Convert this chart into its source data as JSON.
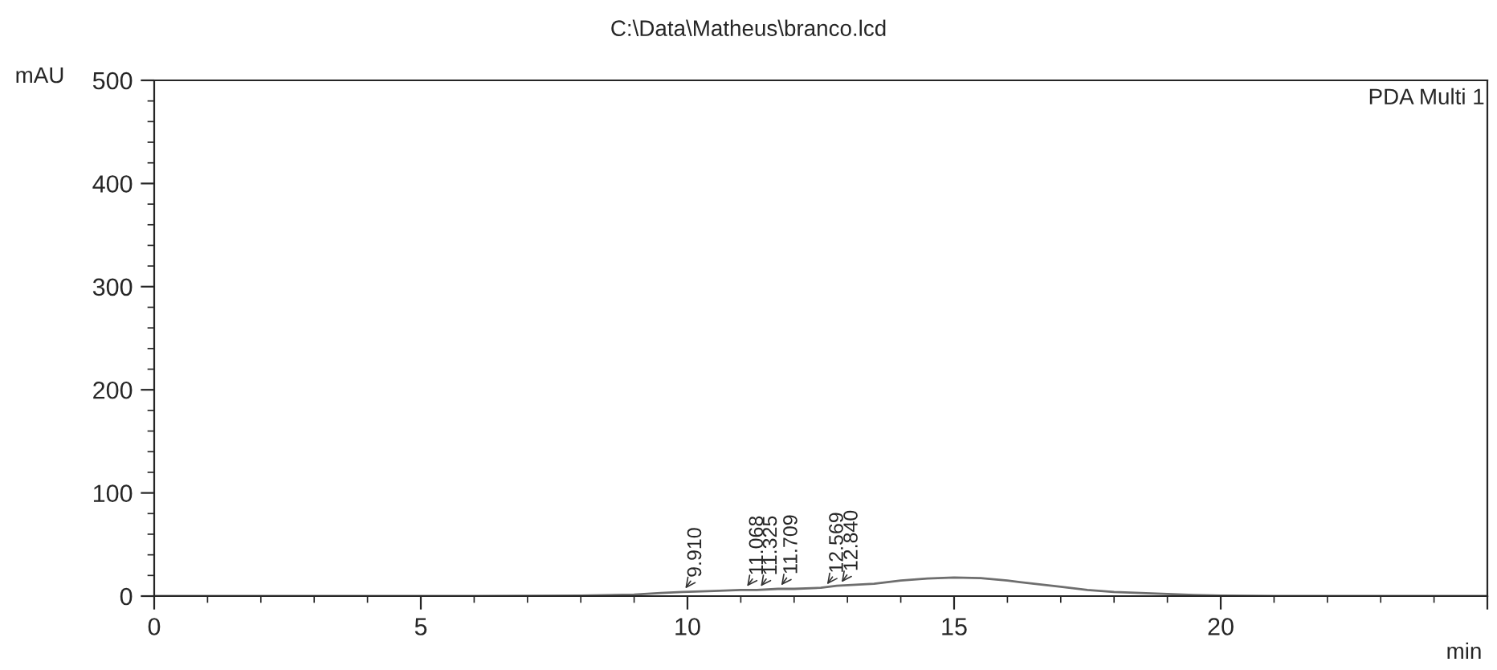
{
  "chart_data": {
    "type": "line",
    "title": "C:\\Data\\Matheus\\branco.lcd",
    "xlabel": "min",
    "ylabel": "mAU",
    "x": [
      0,
      2,
      4,
      6,
      8,
      9,
      9.5,
      9.9,
      10.5,
      11,
      11.3,
      11.7,
      12,
      12.5,
      12.8,
      13.5,
      14,
      14.5,
      15,
      15.5,
      16,
      16.5,
      17,
      17.5,
      18,
      18.5,
      19,
      19.5,
      20,
      21,
      23,
      25
    ],
    "series": [
      {
        "color": "#6e6e6e",
        "values": [
          0,
          0,
          0,
          0,
          0.5,
          1.5,
          3,
          4,
          5,
          6,
          6,
          7,
          7,
          8,
          10,
          12,
          15,
          17,
          18,
          17.5,
          15,
          12,
          9,
          6,
          4,
          3,
          2,
          1,
          0.5,
          0,
          0,
          0
        ]
      }
    ],
    "xlim": [
      0,
      25
    ],
    "ylim": [
      0,
      500
    ],
    "xticks": [
      0,
      5,
      10,
      15,
      20,
      {
        "value": 25,
        "label": null
      }
    ],
    "yticks": [
      0,
      100,
      200,
      300,
      400,
      500
    ],
    "grid": false,
    "marker": "none",
    "line_style": "solid",
    "annotations": [
      {
        "text": "9.910",
        "x": 9.91,
        "y": 4
      },
      {
        "text": "11.068",
        "x": 11.068,
        "y": 6
      },
      {
        "text": "11.325",
        "x": 11.325,
        "y": 6
      },
      {
        "text": "11.709",
        "x": 11.709,
        "y": 7
      },
      {
        "text": "12.569",
        "x": 12.569,
        "y": 8
      },
      {
        "text": "12.840",
        "x": 12.84,
        "y": 10
      },
      "PDA Multi 1"
    ]
  }
}
